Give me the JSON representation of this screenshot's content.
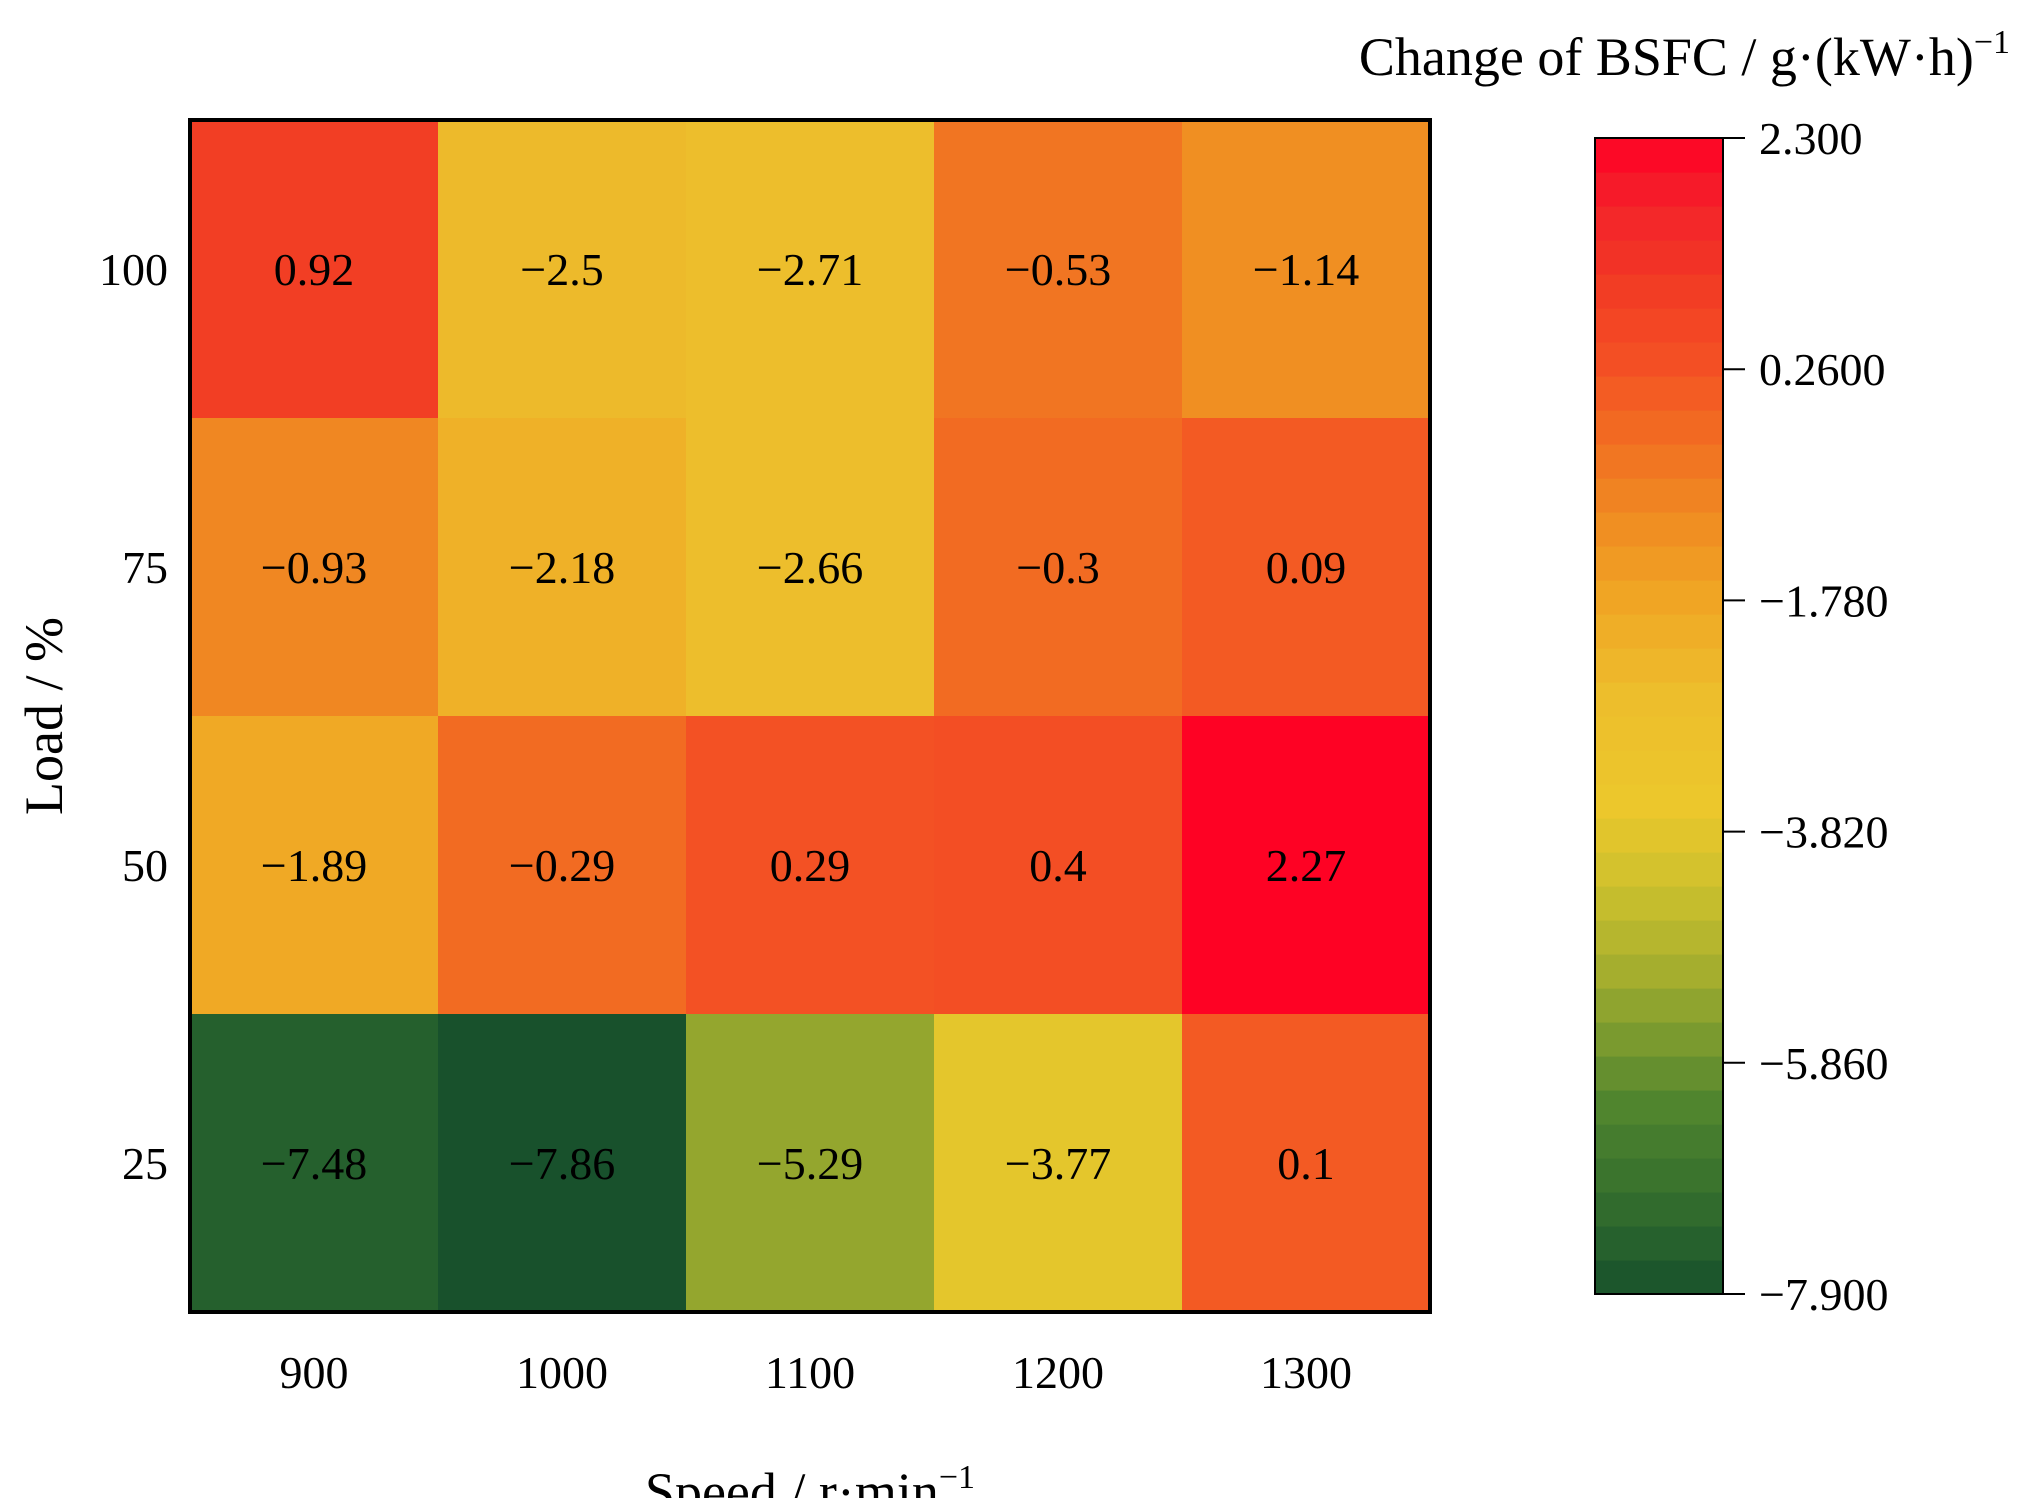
{
  "chart_data": {
    "type": "heatmap",
    "title": "",
    "x": {
      "label": "Speed / r·min",
      "label_superscript": "−1",
      "categories": [
        "900",
        "1000",
        "1100",
        "1200",
        "1300"
      ]
    },
    "y": {
      "label": "Load / %",
      "categories": [
        "100",
        "75",
        "50",
        "25"
      ]
    },
    "values": [
      [
        0.92,
        -2.5,
        -2.71,
        -0.53,
        -1.14
      ],
      [
        -0.93,
        -2.18,
        -2.66,
        -0.3,
        0.09
      ],
      [
        -1.89,
        -0.29,
        0.29,
        0.4,
        2.27
      ],
      [
        -7.48,
        -7.86,
        -5.29,
        -3.77,
        0.1
      ]
    ],
    "value_labels": [
      [
        "0.92",
        "−2.5",
        "−2.71",
        "−0.53",
        "−1.14"
      ],
      [
        "−0.93",
        "−2.18",
        "−2.66",
        "−0.3",
        "0.09"
      ],
      [
        "−1.89",
        "−0.29",
        "0.29",
        "0.4",
        "2.27"
      ],
      [
        "−7.48",
        "−7.86",
        "−5.29",
        "−3.77",
        "0.1"
      ]
    ],
    "colorbar": {
      "title": "Change of BSFC / g·(kW·h)",
      "title_superscript": "−1",
      "range": [
        -7.9,
        2.3
      ],
      "ticks": [
        2.3,
        0.26,
        -1.78,
        -3.82,
        -5.86,
        -7.9
      ],
      "tick_labels": [
        "2.300",
        "0.2600",
        "−1.780",
        "−3.820",
        "−5.860",
        "−7.900"
      ],
      "levels": 34,
      "colors": [
        {
          "v": -7.9,
          "c": "#17502c"
        },
        {
          "v": -7.2,
          "c": "#2f6a2d"
        },
        {
          "v": -6.3,
          "c": "#4d832e"
        },
        {
          "v": -5.6,
          "c": "#7d9c2f"
        },
        {
          "v": -5.0,
          "c": "#a9b02e"
        },
        {
          "v": -4.3,
          "c": "#cdc02d"
        },
        {
          "v": -3.6,
          "c": "#ecc82c"
        },
        {
          "v": -2.6,
          "c": "#edbd2c"
        },
        {
          "v": -1.8,
          "c": "#f0a724"
        },
        {
          "v": -1.0,
          "c": "#f08a22"
        },
        {
          "v": -0.3,
          "c": "#f26b22"
        },
        {
          "v": 0.3,
          "c": "#f35124"
        },
        {
          "v": 1.0,
          "c": "#f23b24"
        },
        {
          "v": 1.7,
          "c": "#f3232a"
        },
        {
          "v": 2.3,
          "c": "#ff0024"
        }
      ]
    }
  }
}
